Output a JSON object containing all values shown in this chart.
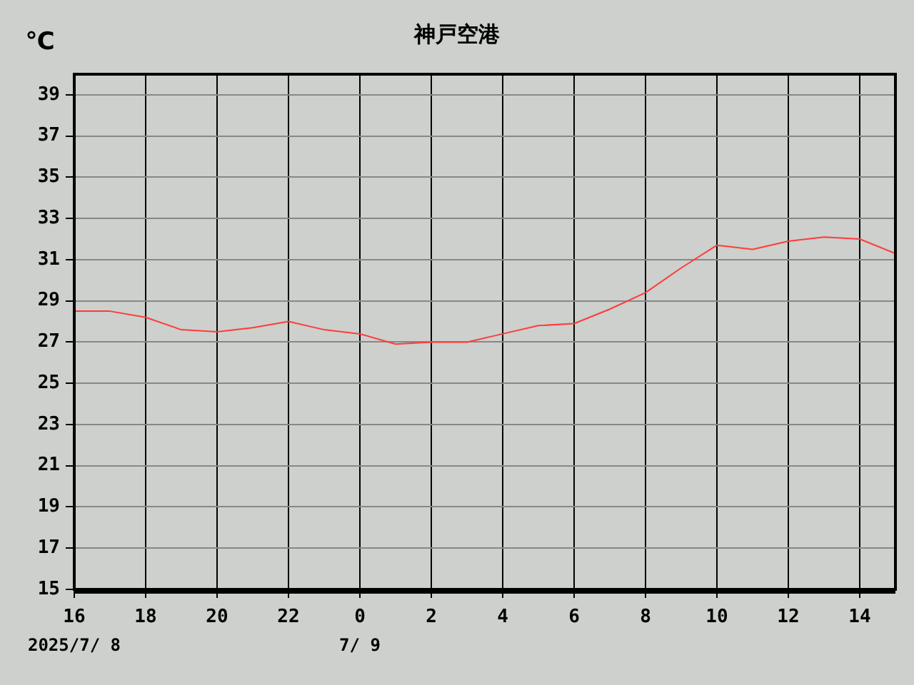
{
  "chart_data": {
    "type": "line",
    "title": "神戸空港",
    "ylabel": "℃",
    "x": [
      "2025-07-08T16:00",
      "2025-07-08T17:00",
      "2025-07-08T18:00",
      "2025-07-08T19:00",
      "2025-07-08T20:00",
      "2025-07-08T21:00",
      "2025-07-08T22:00",
      "2025-07-08T23:00",
      "2025-07-09T00:00",
      "2025-07-09T01:00",
      "2025-07-09T02:00",
      "2025-07-09T03:00",
      "2025-07-09T04:00",
      "2025-07-09T05:00",
      "2025-07-09T06:00",
      "2025-07-09T07:00",
      "2025-07-09T08:00",
      "2025-07-09T09:00",
      "2025-07-09T10:00",
      "2025-07-09T11:00",
      "2025-07-09T12:00",
      "2025-07-09T13:00",
      "2025-07-09T14:00",
      "2025-07-09T15:00"
    ],
    "series": [
      {
        "color": "#ff3b3b",
        "values": [
          28.5,
          28.5,
          28.2,
          27.6,
          27.5,
          27.7,
          28.0,
          27.6,
          27.4,
          26.9,
          27.0,
          27.0,
          27.4,
          27.8,
          27.9,
          28.6,
          29.4,
          30.6,
          31.7,
          31.5,
          31.9,
          32.1,
          32.0,
          31.3
        ]
      }
    ],
    "xlim": [
      "2025-07-08T16:00",
      "2025-07-09T15:00"
    ],
    "xticks": [
      {
        "value": "2025-07-08T16:00",
        "label": "16"
      },
      {
        "value": "2025-07-08T18:00",
        "label": "18"
      },
      {
        "value": "2025-07-08T20:00",
        "label": "20"
      },
      {
        "value": "2025-07-08T22:00",
        "label": "22"
      },
      {
        "value": "2025-07-09T00:00",
        "label": "0"
      },
      {
        "value": "2025-07-09T02:00",
        "label": "2"
      },
      {
        "value": "2025-07-09T04:00",
        "label": "4"
      },
      {
        "value": "2025-07-09T06:00",
        "label": "6"
      },
      {
        "value": "2025-07-09T08:00",
        "label": "8"
      },
      {
        "value": "2025-07-09T10:00",
        "label": "10"
      },
      {
        "value": "2025-07-09T12:00",
        "label": "12"
      },
      {
        "value": "2025-07-09T14:00",
        "label": "14"
      }
    ],
    "ylim": [
      15,
      40
    ],
    "yticks": [
      15,
      17,
      19,
      21,
      23,
      25,
      27,
      29,
      31,
      33,
      35,
      37,
      39
    ],
    "grid": true,
    "legend": false,
    "marker": "none",
    "line_style": "solid",
    "annotations": [
      "2025/7/ 8",
      "7/ 9"
    ]
  }
}
